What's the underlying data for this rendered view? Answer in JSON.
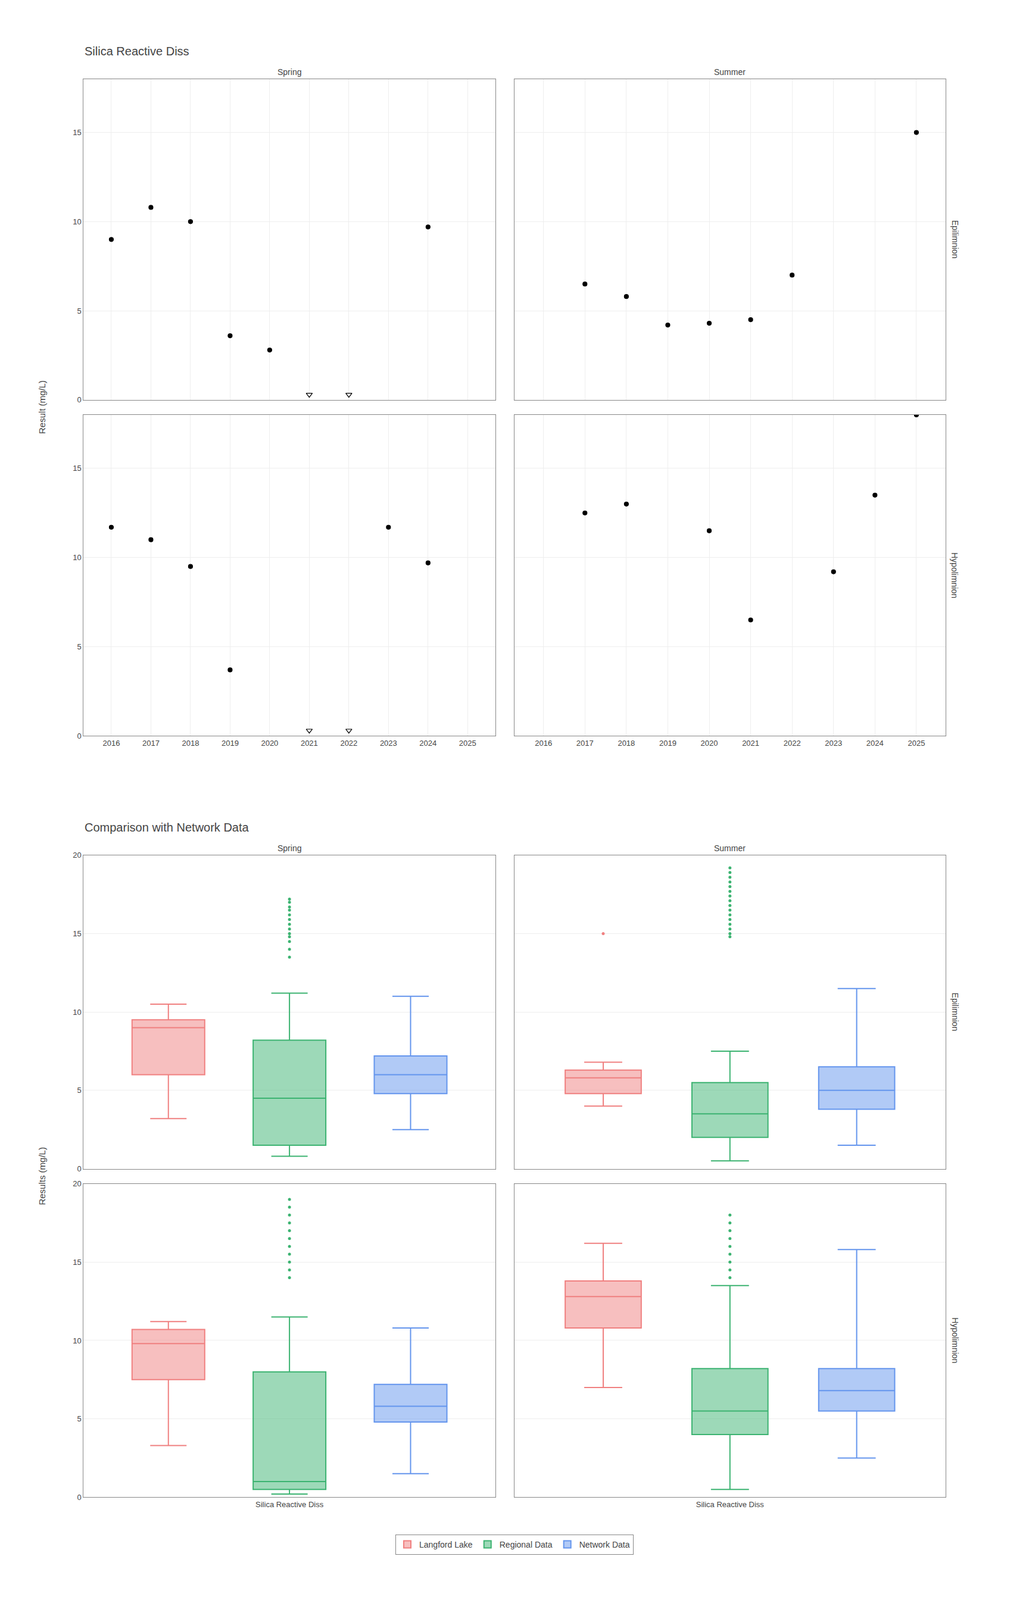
{
  "chart_data": [
    {
      "type": "scatter",
      "title": "Silica Reactive Diss",
      "ylabel": "Result (mg/L)",
      "columns": [
        "Spring",
        "Summer"
      ],
      "rows": [
        "Epilimnion",
        "Hypolimnion"
      ],
      "xlim": [
        2015.3,
        2025.7
      ],
      "xticks": [
        2016,
        2017,
        2018,
        2019,
        2020,
        2021,
        2022,
        2023,
        2024,
        2025
      ],
      "ylim": [
        0,
        18
      ],
      "yticks": [
        0,
        5,
        10,
        15
      ],
      "grid": true,
      "panels": [
        {
          "column": "Spring",
          "row": "Epilimnion",
          "series": [
            {
              "marker": "circle",
              "color": "black",
              "x": [
                2016,
                2017,
                2018,
                2019,
                2020,
                2024
              ],
              "values": [
                9.0,
                10.8,
                10.0,
                3.6,
                2.8,
                9.7
              ]
            },
            {
              "marker": "triangle-down-open",
              "color": "black",
              "x": [
                2021,
                2022
              ],
              "values": [
                0.3,
                0.3
              ]
            }
          ]
        },
        {
          "column": "Summer",
          "row": "Epilimnion",
          "series": [
            {
              "marker": "circle",
              "color": "black",
              "x": [
                2017,
                2018,
                2019,
                2020,
                2021,
                2022,
                2025
              ],
              "values": [
                6.5,
                5.8,
                4.2,
                4.3,
                4.5,
                7.0,
                15.0
              ]
            }
          ]
        },
        {
          "column": "Spring",
          "row": "Hypolimnion",
          "series": [
            {
              "marker": "circle",
              "color": "black",
              "x": [
                2016,
                2017,
                2018,
                2019,
                2023,
                2024
              ],
              "values": [
                11.7,
                11.0,
                9.5,
                3.7,
                11.7,
                9.7
              ]
            },
            {
              "marker": "triangle-down-open",
              "color": "black",
              "x": [
                2021,
                2022
              ],
              "values": [
                0.3,
                0.3
              ]
            }
          ]
        },
        {
          "column": "Summer",
          "row": "Hypolimnion",
          "series": [
            {
              "marker": "circle",
              "color": "black",
              "x": [
                2017,
                2018,
                2020,
                2021,
                2023,
                2024,
                2025
              ],
              "values": [
                12.5,
                13.0,
                11.5,
                6.5,
                9.2,
                13.5,
                18.0
              ]
            }
          ]
        }
      ]
    },
    {
      "type": "box",
      "title": "Comparison with Network Data",
      "ylabel": "Results (mg/L)",
      "categories": [
        "Silica Reactive Diss"
      ],
      "columns": [
        "Spring",
        "Summer"
      ],
      "rows": [
        "Epilimnion",
        "Hypolimnion"
      ],
      "ylim": [
        0,
        20
      ],
      "yticks": [
        0,
        5,
        10,
        15,
        20
      ],
      "grid": true,
      "legend": "bottom",
      "panels": [
        {
          "column": "Spring",
          "row": "Epilimnion",
          "series": [
            {
              "name": "Langford Lake",
              "color": "#F08080",
              "med": 9.0,
              "q1": 6.0,
              "q3": 9.5,
              "whislo": 3.2,
              "whishi": 10.5,
              "fliers": []
            },
            {
              "name": "Regional Data",
              "color": "#3CB371",
              "med": 4.5,
              "q1": 1.5,
              "q3": 8.2,
              "whislo": 0.8,
              "whishi": 11.2,
              "fliers": [
                13.5,
                14.0,
                14.5,
                14.8,
                15.0,
                15.3,
                15.6,
                15.9,
                16.2,
                16.5,
                16.7,
                17.0,
                17.2
              ]
            },
            {
              "name": "Network Data",
              "color": "#6495ED",
              "med": 6.0,
              "q1": 4.8,
              "q3": 7.2,
              "whislo": 2.5,
              "whishi": 11.0,
              "fliers": []
            }
          ]
        },
        {
          "column": "Summer",
          "row": "Epilimnion",
          "series": [
            {
              "name": "Langford Lake",
              "color": "#F08080",
              "med": 5.8,
              "q1": 4.8,
              "q3": 6.3,
              "whislo": 4.0,
              "whishi": 6.8,
              "fliers": [
                15.0
              ]
            },
            {
              "name": "Regional Data",
              "color": "#3CB371",
              "med": 3.5,
              "q1": 2.0,
              "q3": 5.5,
              "whislo": 0.5,
              "whishi": 7.5,
              "fliers": [
                14.8,
                15.0,
                15.3,
                15.6,
                15.9,
                16.2,
                16.5,
                16.8,
                17.1,
                17.4,
                17.7,
                18.0,
                18.3,
                18.6,
                18.9,
                19.2
              ]
            },
            {
              "name": "Network Data",
              "color": "#6495ED",
              "med": 5.0,
              "q1": 3.8,
              "q3": 6.5,
              "whislo": 1.5,
              "whishi": 11.5,
              "fliers": []
            }
          ]
        },
        {
          "column": "Spring",
          "row": "Hypolimnion",
          "series": [
            {
              "name": "Langford Lake",
              "color": "#F08080",
              "med": 9.8,
              "q1": 7.5,
              "q3": 10.7,
              "whislo": 3.3,
              "whishi": 11.2,
              "fliers": []
            },
            {
              "name": "Regional Data",
              "color": "#3CB371",
              "med": 1.0,
              "q1": 0.5,
              "q3": 8.0,
              "whislo": 0.2,
              "whishi": 11.5,
              "fliers": [
                14.0,
                14.5,
                15.0,
                15.5,
                16.0,
                16.5,
                17.0,
                17.5,
                18.0,
                18.5,
                19.0
              ]
            },
            {
              "name": "Network Data",
              "color": "#6495ED",
              "med": 5.8,
              "q1": 4.8,
              "q3": 7.2,
              "whislo": 1.5,
              "whishi": 10.8,
              "fliers": []
            }
          ]
        },
        {
          "column": "Summer",
          "row": "Hypolimnion",
          "series": [
            {
              "name": "Langford Lake",
              "color": "#F08080",
              "med": 12.8,
              "q1": 10.8,
              "q3": 13.8,
              "whislo": 7.0,
              "whishi": 16.2,
              "fliers": []
            },
            {
              "name": "Regional Data",
              "color": "#3CB371",
              "med": 5.5,
              "q1": 4.0,
              "q3": 8.2,
              "whislo": 0.5,
              "whishi": 13.5,
              "fliers": [
                14.0,
                14.5,
                15.0,
                15.5,
                16.0,
                16.5,
                17.0,
                17.5,
                18.0
              ]
            },
            {
              "name": "Network Data",
              "color": "#6495ED",
              "med": 6.8,
              "q1": 5.5,
              "q3": 8.2,
              "whislo": 2.5,
              "whishi": 15.8,
              "fliers": []
            }
          ]
        }
      ]
    }
  ]
}
